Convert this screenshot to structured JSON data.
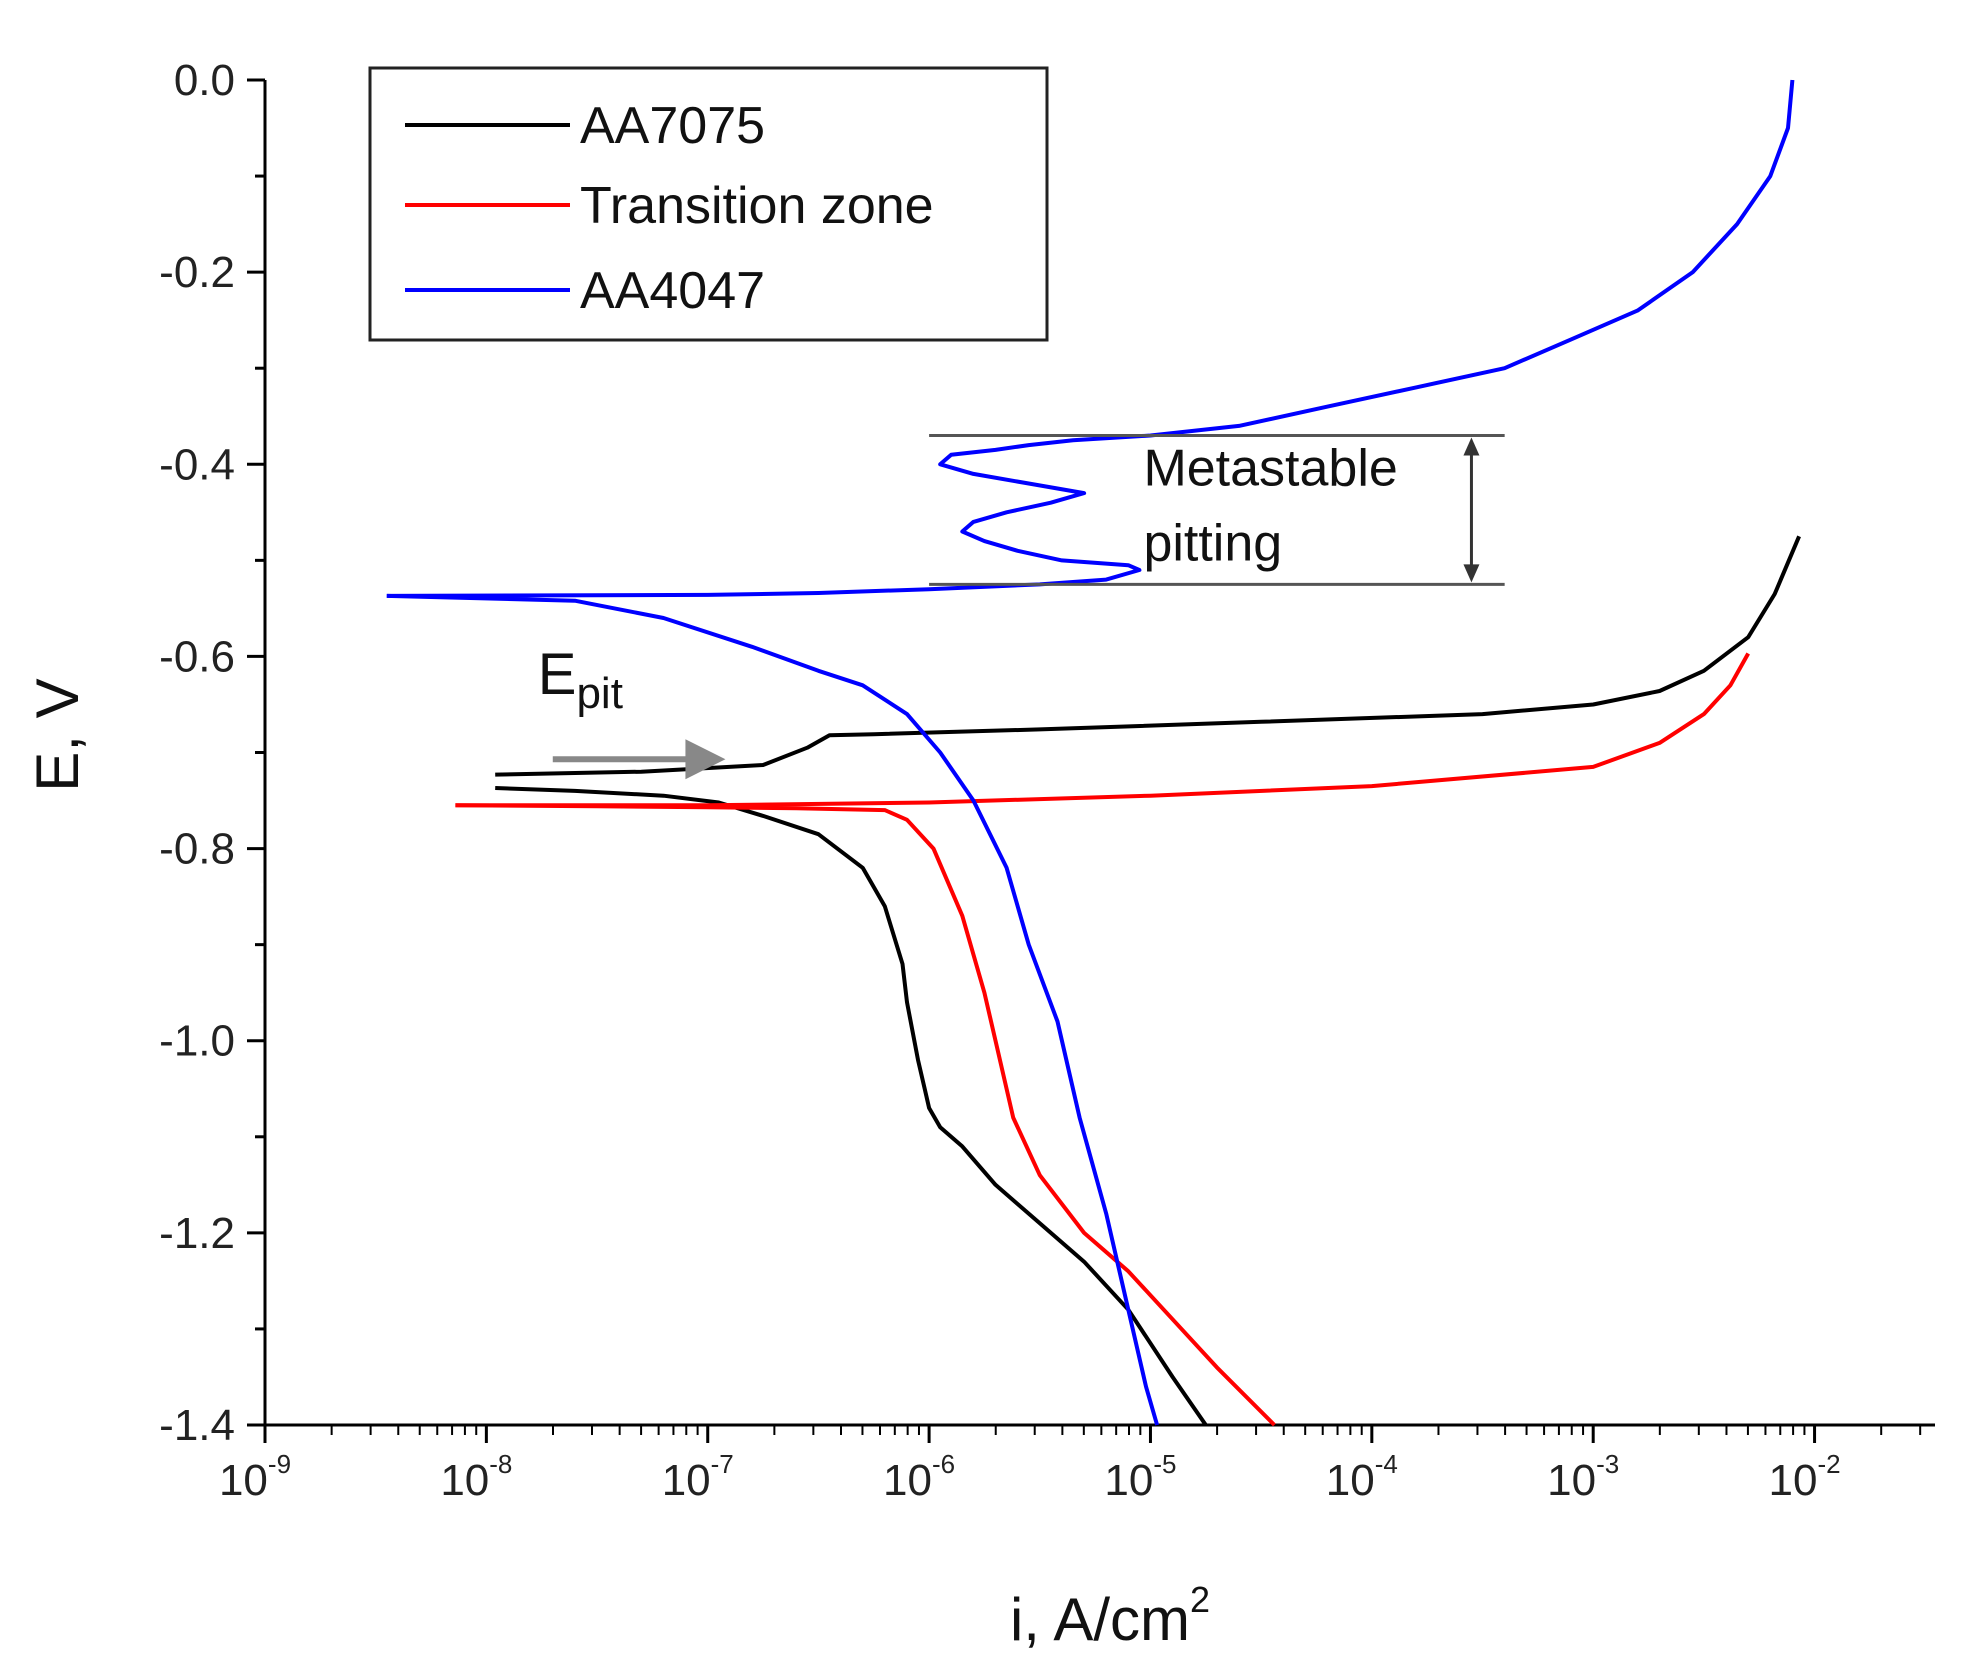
{
  "chart_data": {
    "type": "line",
    "xscale": "log",
    "xlabel": "i, A/cm",
    "xlabel_sup": "2",
    "ylabel": "E, V",
    "xlim": [
      1e-09,
      0.035
    ],
    "ylim": [
      -1.4,
      0.0
    ],
    "y_ticks": [
      0.0,
      -0.2,
      -0.4,
      -0.6,
      -0.8,
      -1.0,
      -1.2,
      -1.4
    ],
    "y_tick_labels": [
      "0.0",
      "-0.2",
      "-0.4",
      "-0.6",
      "-0.8",
      "-1.0",
      "-1.2",
      "-1.4"
    ],
    "x_ticks": [
      {
        "base": "10",
        "exp": "-9",
        "value": -9
      },
      {
        "base": "10",
        "exp": "-8",
        "value": -8
      },
      {
        "base": "10",
        "exp": "-7",
        "value": -7
      },
      {
        "base": "10",
        "exp": "-6",
        "value": -6
      },
      {
        "base": "10",
        "exp": "-5",
        "value": -5
      },
      {
        "base": "10",
        "exp": "-4",
        "value": -4
      },
      {
        "base": "10",
        "exp": "-3",
        "value": -3
      },
      {
        "base": "10",
        "exp": "-2",
        "value": -2
      }
    ],
    "legend_position": "top-left",
    "series": [
      {
        "name": "AA7075",
        "color": "#000000",
        "log_i": [
          -7.96,
          -7.6,
          -7.2,
          -6.95,
          -6.75,
          -6.5,
          -6.3,
          -6.2,
          -6.12,
          -6.1,
          -6.05,
          -6.02,
          -6.0,
          -5.95,
          -5.85,
          -5.7,
          -5.5,
          -5.3,
          -5.1,
          -4.9,
          -4.75
        ],
        "E": [
          -0.737,
          -0.74,
          -0.745,
          -0.752,
          -0.766,
          -0.785,
          -0.82,
          -0.86,
          -0.92,
          -0.96,
          -1.02,
          -1.05,
          -1.07,
          -1.09,
          -1.11,
          -1.15,
          -1.19,
          -1.23,
          -1.28,
          -1.35,
          -1.4
        ],
        "log_i_anodic": [
          -7.96,
          -7.3,
          -6.75,
          -6.55,
          -6.45,
          -6.25,
          -5.5,
          -4.5,
          -3.5,
          -3.0,
          -2.7,
          -2.5,
          -2.3,
          -2.18,
          -2.07
        ],
        "E_anodic": [
          -0.723,
          -0.72,
          -0.713,
          -0.695,
          -0.682,
          -0.681,
          -0.676,
          -0.668,
          -0.66,
          -0.65,
          -0.636,
          -0.615,
          -0.58,
          -0.535,
          -0.475
        ]
      },
      {
        "name": "Transition zone",
        "color": "#ff0000",
        "log_i": [
          -8.14,
          -7.5,
          -7.0,
          -6.6,
          -6.2,
          -6.1,
          -5.98,
          -5.85,
          -5.75,
          -5.7,
          -5.62,
          -5.5,
          -5.3,
          -5.1,
          -4.9,
          -4.7,
          -4.44
        ],
        "E": [
          -0.755,
          -0.756,
          -0.757,
          -0.758,
          -0.76,
          -0.77,
          -0.8,
          -0.87,
          -0.95,
          -1.0,
          -1.08,
          -1.14,
          -1.2,
          -1.24,
          -1.29,
          -1.34,
          -1.4
        ],
        "log_i_anodic": [
          -8.14,
          -7.0,
          -6.0,
          -5.0,
          -4.0,
          -3.0,
          -2.7,
          -2.5,
          -2.38,
          -2.3
        ],
        "E_anodic": [
          -0.755,
          -0.755,
          -0.752,
          -0.745,
          -0.735,
          -0.715,
          -0.69,
          -0.66,
          -0.63,
          -0.597
        ]
      },
      {
        "name": "AA4047",
        "color": "#0000ff",
        "log_i": [
          -8.45,
          -7.6,
          -7.2,
          -6.8,
          -6.5,
          -6.3,
          -6.1,
          -5.95,
          -5.8,
          -5.65,
          -5.55,
          -5.42,
          -5.32,
          -5.2,
          -5.1,
          -5.02,
          -4.97
        ],
        "E": [
          -0.537,
          -0.542,
          -0.56,
          -0.59,
          -0.615,
          -0.63,
          -0.66,
          -0.7,
          -0.75,
          -0.82,
          -0.9,
          -0.98,
          -1.08,
          -1.18,
          -1.28,
          -1.36,
          -1.4
        ],
        "log_i_anodic": [
          -8.45,
          -7.0,
          -6.5,
          -6.0,
          -5.5,
          -5.2,
          -5.05,
          -5.1,
          -5.4,
          -5.6,
          -5.75,
          -5.85,
          -5.8,
          -5.65,
          -5.45,
          -5.3,
          -5.55,
          -5.8,
          -5.95,
          -5.9,
          -5.7,
          -5.55,
          -5.35,
          -5.0,
          -4.6,
          -4.2,
          -3.8,
          -3.4,
          -3.1,
          -2.8,
          -2.55,
          -2.35,
          -2.2,
          -2.12,
          -2.1
        ],
        "E_anodic": [
          -0.537,
          -0.536,
          -0.534,
          -0.53,
          -0.525,
          -0.52,
          -0.51,
          -0.505,
          -0.5,
          -0.49,
          -0.48,
          -0.47,
          -0.46,
          -0.45,
          -0.44,
          -0.43,
          -0.42,
          -0.41,
          -0.4,
          -0.39,
          -0.385,
          -0.38,
          -0.375,
          -0.37,
          -0.36,
          -0.34,
          -0.32,
          -0.3,
          -0.27,
          -0.24,
          -0.2,
          -0.15,
          -0.1,
          -0.05,
          0.0
        ]
      }
    ],
    "annotations": {
      "epit_label": "E",
      "epit_sub": "pit",
      "epit_arrow_start": [
        -7.7,
        -0.707
      ],
      "epit_arrow_end": [
        -6.92,
        -0.707
      ],
      "metastable_line1": "Metastable",
      "metastable_line2": "pitting",
      "metastable_range": [
        -0.37,
        -0.525
      ],
      "metastable_line_from": -6.0,
      "metastable_line_to": -3.4,
      "metastable_arrow_x": -3.55
    }
  }
}
